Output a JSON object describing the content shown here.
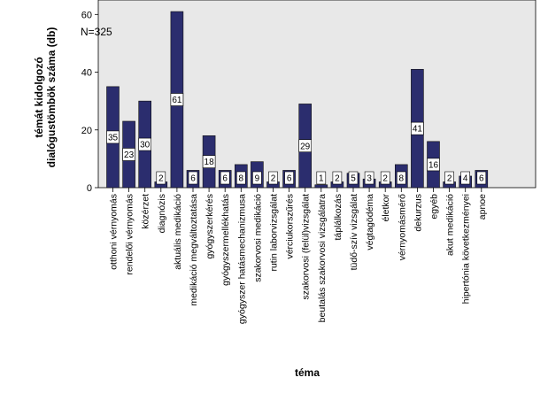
{
  "chart_data": {
    "type": "bar",
    "annotation": "N=325",
    "ylabel_lines": [
      "témát kidolgozó",
      "dialógustömbök száma (db)"
    ],
    "xlabel": "téma",
    "ylim": [
      0,
      65
    ],
    "yticks": [
      0,
      20,
      40,
      60
    ],
    "grid": false,
    "bar_color": "#2b2d6e",
    "plot_bg": "#e8e8e8",
    "categories": [
      "otthoni vérnyomás",
      "rendelői vérnyomás",
      "közérzet",
      "diagnózis",
      "aktuális medikáció",
      "medikáció megváltoztatása",
      "gyógyszerkérés",
      "gyógyszermellékhatás",
      "gyógyszer hatásmechanizmusa",
      "szakorvosi medikáció",
      "rutin laborvizsgálat",
      "vérciukorszűrés",
      "szakorvosi (felül)vizsgálat",
      "beutalás szakorvosi vizsgálatra",
      "táplálkozás",
      "tüdő-szív vizsgálat",
      "végtagödéma",
      "életkor",
      "vérnyomásmérő",
      "dekurzus",
      "egyéb",
      "akut medikáció",
      "hipertónia következményei",
      "apnoe"
    ],
    "values": [
      35,
      23,
      30,
      2,
      61,
      6,
      18,
      6,
      8,
      9,
      2,
      6,
      29,
      1,
      2,
      5,
      3,
      2,
      8,
      41,
      16,
      2,
      4,
      6
    ]
  }
}
